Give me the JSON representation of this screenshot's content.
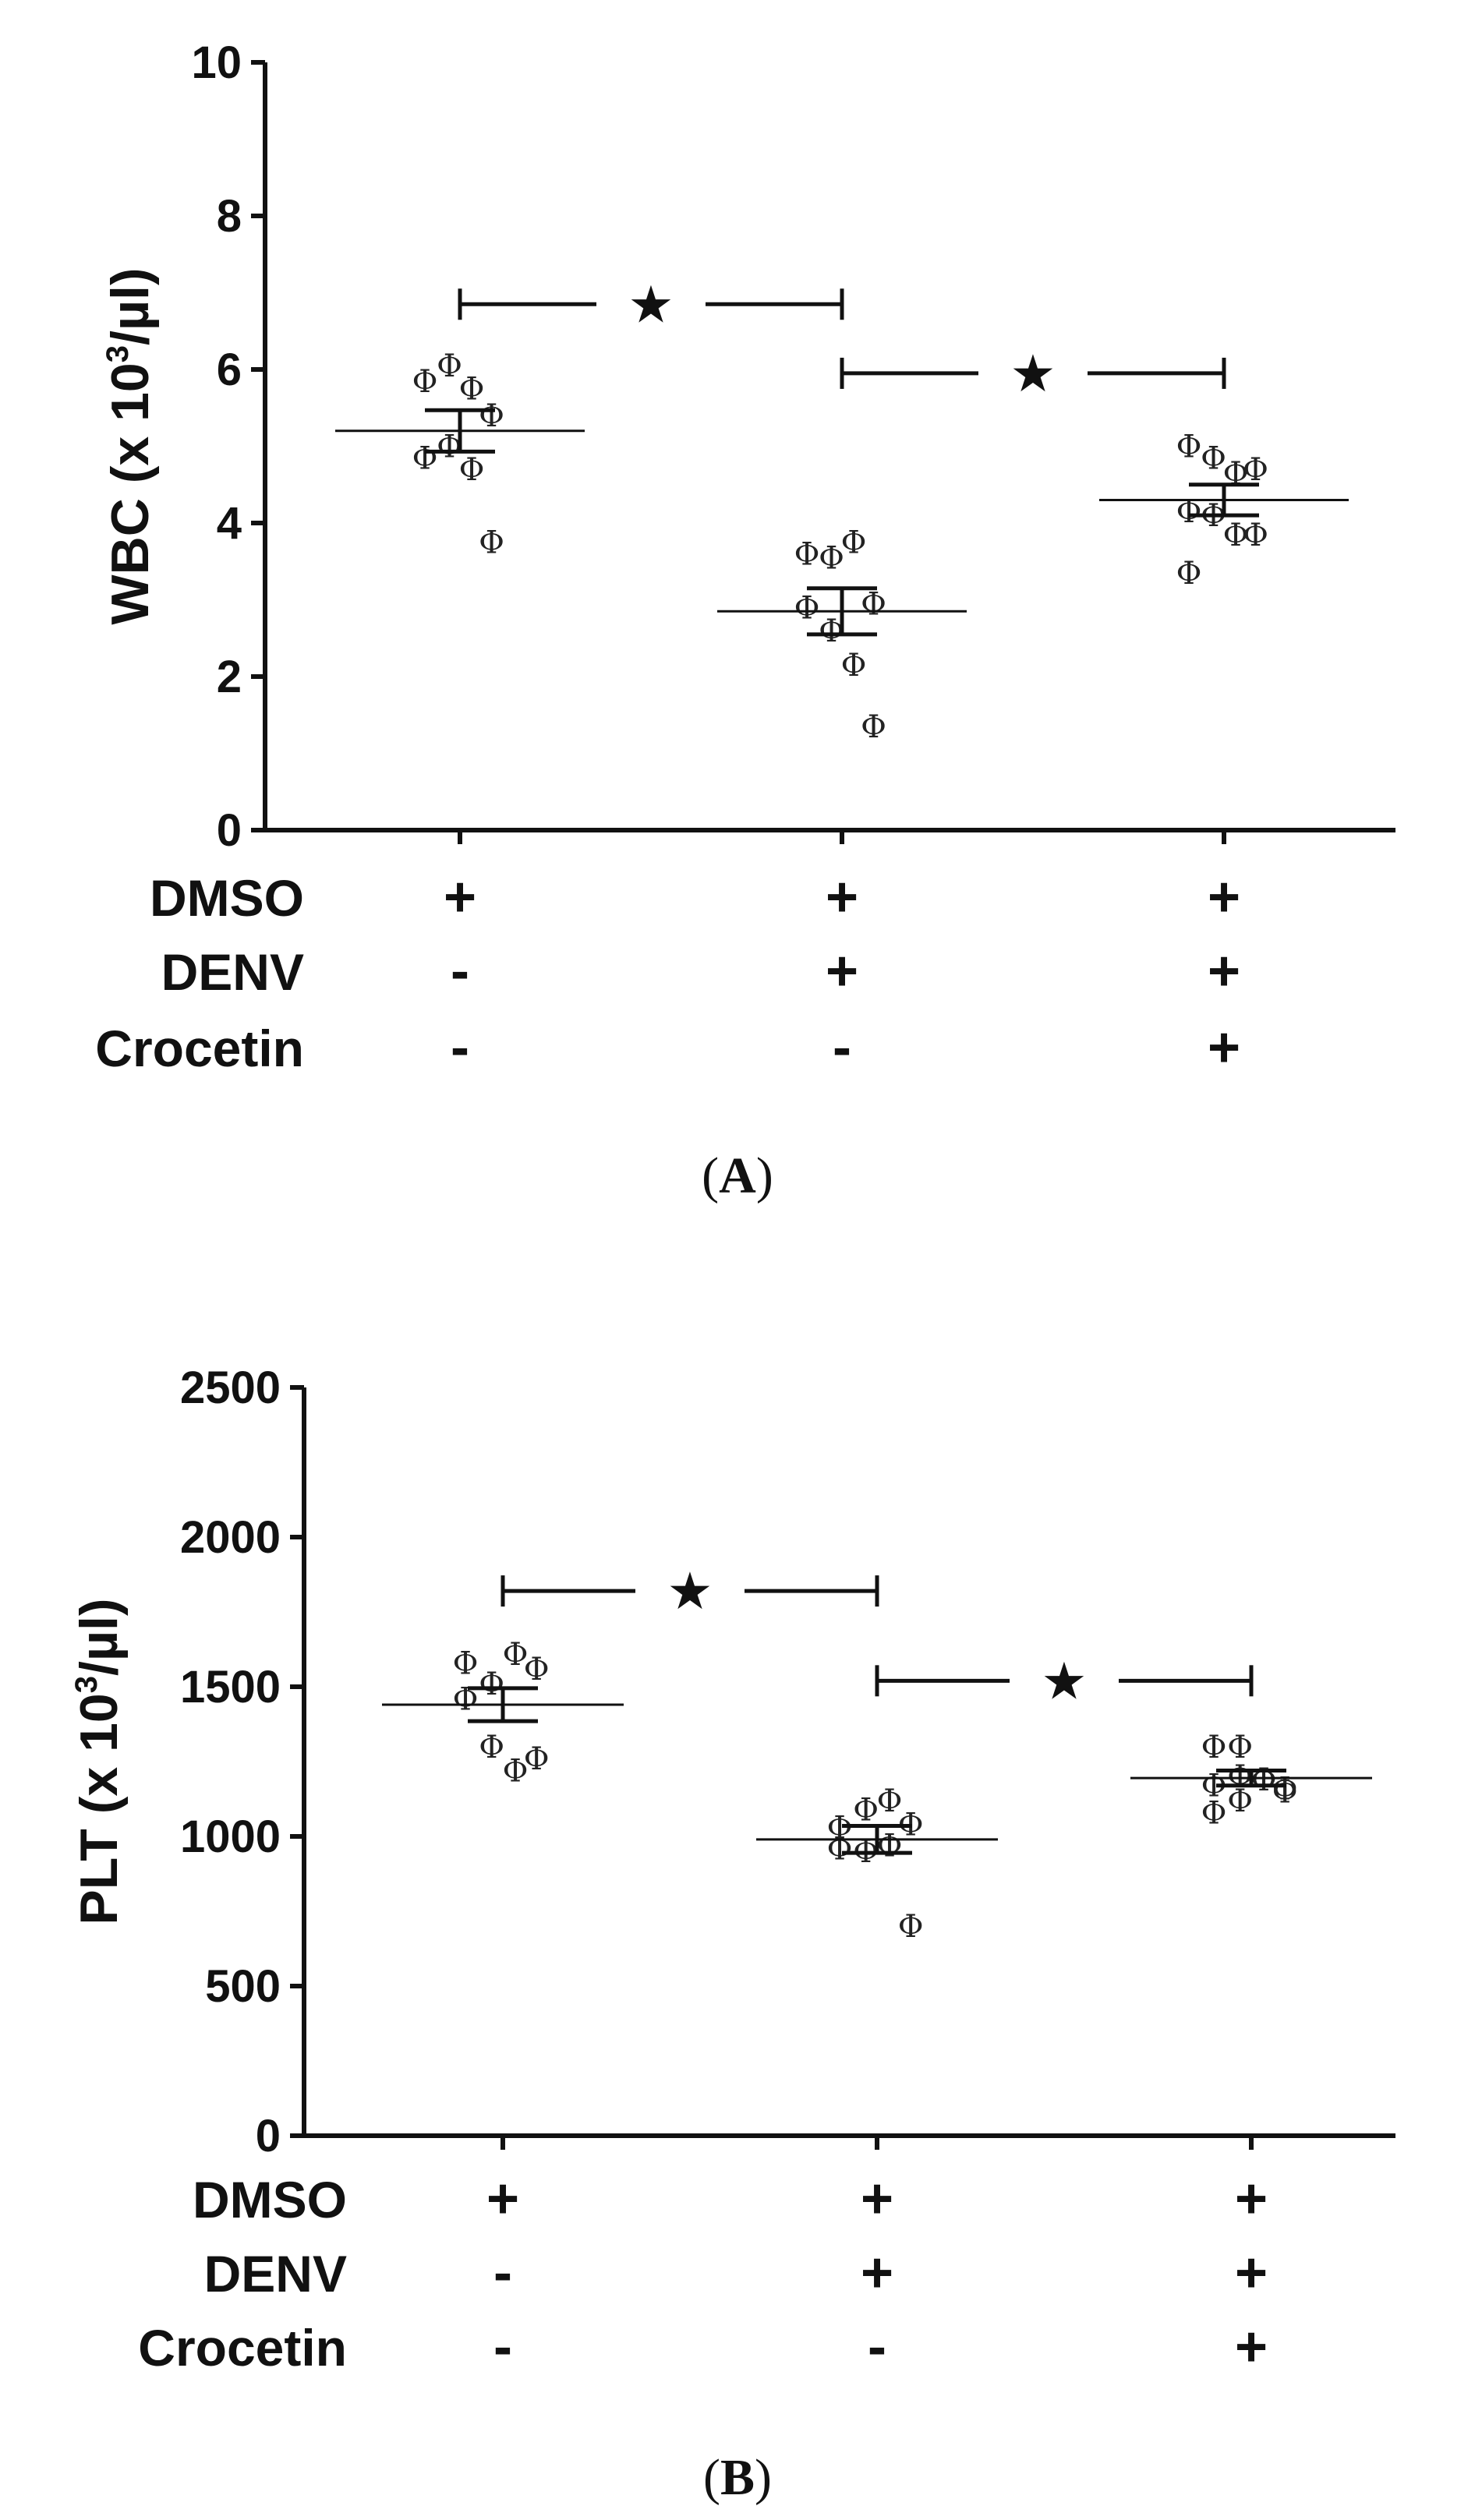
{
  "chart_data": [
    {
      "type": "scatter",
      "panel_label": "A",
      "ylabel": "WBC (x 10",
      "ylabel_sup": "3",
      "ylabel_end": "/µl)",
      "ylim": [
        0,
        10
      ],
      "yticks": [
        0,
        2,
        4,
        6,
        8,
        10
      ],
      "ytick_labels": [
        "0",
        "2",
        "4",
        "6",
        "8",
        "10"
      ],
      "groups": [
        "DMSO",
        "DMSO+DENV",
        "DMSO+DENV+Crocetin"
      ],
      "groups_display": {
        "rows": [
          {
            "label": "DMSO",
            "signs": [
              "+",
              "+",
              "+"
            ]
          },
          {
            "label": "DENV",
            "signs": [
              "-",
              "+",
              "+"
            ]
          },
          {
            "label": "Crocetin",
            "signs": [
              "-",
              "-",
              "+"
            ]
          }
        ]
      },
      "marker": "Φ",
      "points": [
        [
          5.85,
          6.05,
          5.75,
          5.4,
          4.85,
          5.0,
          4.7,
          3.75
        ],
        [
          3.6,
          3.55,
          3.75,
          2.95,
          2.9,
          2.6,
          2.15,
          1.35
        ],
        [
          5.0,
          4.85,
          4.65,
          4.7,
          4.15,
          4.1,
          3.85,
          3.85,
          3.35
        ]
      ],
      "mean": [
        5.2,
        2.85,
        4.3
      ],
      "sem": [
        0.27,
        0.3,
        0.2
      ],
      "significance": [
        {
          "from": 0,
          "to": 1,
          "y": 6.85,
          "label": "★"
        },
        {
          "from": 1,
          "to": 2,
          "y": 5.95,
          "label": "★"
        }
      ]
    },
    {
      "type": "scatter",
      "panel_label": "B",
      "ylabel": "PLT (x 10",
      "ylabel_sup": "3",
      "ylabel_end": "/µl)",
      "ylim": [
        0,
        2500
      ],
      "yticks": [
        0,
        500,
        1000,
        1500,
        2000,
        2500
      ],
      "ytick_labels": [
        "0",
        "500",
        "1000",
        "1500",
        "2000",
        "2500"
      ],
      "groups": [
        "DMSO",
        "DMSO+DENV",
        "DMSO+DENV+Crocetin"
      ],
      "groups_display": {
        "rows": [
          {
            "label": "DMSO",
            "signs": [
              "+",
              "+",
              "+"
            ]
          },
          {
            "label": "DENV",
            "signs": [
              "-",
              "+",
              "+"
            ]
          },
          {
            "label": "Crocetin",
            "signs": [
              "-",
              "-",
              "+"
            ]
          }
        ]
      },
      "marker": "Φ",
      "points": [
        [
          1580,
          1510,
          1610,
          1560,
          1460,
          1300,
          1220,
          1260
        ],
        [
          1030,
          1090,
          1120,
          1040,
          960,
          950,
          970,
          700
        ],
        [
          1300,
          1300,
          1190,
          1150,
          1170,
          1200,
          1190,
          1160,
          1080,
          1120
        ]
      ],
      "mean": [
        1440,
        990,
        1195
      ],
      "sem": [
        55,
        45,
        25
      ],
      "significance": [
        {
          "from": 0,
          "to": 1,
          "y": 1820,
          "label": "★"
        },
        {
          "from": 1,
          "to": 2,
          "y": 1520,
          "label": "★"
        }
      ]
    }
  ]
}
